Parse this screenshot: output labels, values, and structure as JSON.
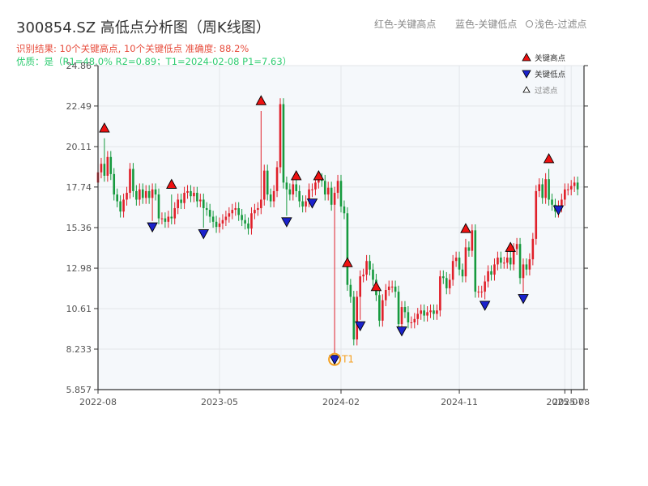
{
  "header": {
    "title": "300854.SZ 高低点分析图（周K线图）",
    "result_line": "识别结果: 10个关键高点, 10个关键低点  准确度: 88.2%",
    "quality_line": "优质：是（R1=48.0%  R2=0.89；T1=2024-02-08 P1=7.63）",
    "legend_red": "红色-关键高点",
    "legend_blue": "蓝色-关键低点",
    "legend_light": "浅色-过滤点"
  },
  "legend": {
    "high": "关键高点",
    "low": "关键低点",
    "filtered": "过滤点"
  },
  "annotation": {
    "t1": "T1"
  },
  "colors": {
    "up": "#e0202a",
    "down": "#169a3e",
    "high": "#ee1111",
    "low": "#1a22cc",
    "t1": "#f5a020"
  },
  "chart_data": {
    "type": "candlestick",
    "ylim": [
      5.857,
      24.86
    ],
    "y_ticks": [
      "5.857",
      "8.233",
      "10.61",
      "12.98",
      "15.36",
      "17.74",
      "20.11",
      "22.49",
      "24.86"
    ],
    "x_ticks": [
      "2022-08",
      "2023-05",
      "2024-02",
      "2024-11",
      "2025-07",
      "2025-08"
    ],
    "x_tick_positions": [
      0,
      38,
      76,
      113,
      146,
      148
    ],
    "x_range": [
      0,
      152
    ],
    "grid": true,
    "closes": [
      18.6,
      19.1,
      18.4,
      19.5,
      18.5,
      17.3,
      16.9,
      16.3,
      17.0,
      17.4,
      18.8,
      17.5,
      17.0,
      17.6,
      17.1,
      17.5,
      17.1,
      17.6,
      17.3,
      15.9,
      15.9,
      15.7,
      16.0,
      15.9,
      16.5,
      17.0,
      16.8,
      17.4,
      17.5,
      17.2,
      17.4,
      16.9,
      17.0,
      16.5,
      16.4,
      16.0,
      15.7,
      15.4,
      15.6,
      15.8,
      16.0,
      16.2,
      16.4,
      16.5,
      16.1,
      15.8,
      15.6,
      15.3,
      16.2,
      16.4,
      16.5,
      17.0,
      18.7,
      17.3,
      16.9,
      17.5,
      18.9,
      22.6,
      18.0,
      17.6,
      17.3,
      17.9,
      17.5,
      16.9,
      16.6,
      16.9,
      17.6,
      17.6,
      18.0,
      18.2,
      18.1,
      17.3,
      17.7,
      16.7,
      17.4,
      18.1,
      16.6,
      16.2,
      12.0,
      11.3,
      8.8,
      11.3,
      12.5,
      12.6,
      13.4,
      12.9,
      12.3,
      11.4,
      9.9,
      11.1,
      11.7,
      11.9,
      11.9,
      11.6,
      9.7,
      10.7,
      10.4,
      9.8,
      9.8,
      10.0,
      10.3,
      10.5,
      10.2,
      10.4,
      10.5,
      10.3,
      10.5,
      12.5,
      12.4,
      11.8,
      12.3,
      13.4,
      13.6,
      12.9,
      12.5,
      14.2,
      14.0,
      15.2,
      11.6,
      11.6,
      11.6,
      12.2,
      12.8,
      12.6,
      13.2,
      13.6,
      13.3,
      13.3,
      13.6,
      13.2,
      14.1,
      14.4,
      12.4,
      13.2,
      12.9,
      13.5,
      14.7,
      17.5,
      17.9,
      17.1,
      18.2,
      17.0,
      16.7,
      16.3,
      16.6,
      17.0,
      17.6,
      17.6,
      17.8,
      18.0,
      17.6
    ],
    "key_highs": [
      {
        "i": 2,
        "price": 21.2
      },
      {
        "i": 23,
        "price": 17.9
      },
      {
        "i": 51,
        "price": 22.8
      },
      {
        "i": 62,
        "price": 18.4
      },
      {
        "i": 69,
        "price": 18.4
      },
      {
        "i": 78,
        "price": 13.3
      },
      {
        "i": 87,
        "price": 11.9
      },
      {
        "i": 115,
        "price": 15.3
      },
      {
        "i": 129,
        "price": 14.2
      },
      {
        "i": 141,
        "price": 19.4
      }
    ],
    "key_lows": [
      {
        "i": 17,
        "price": 15.4
      },
      {
        "i": 33,
        "price": 15.0
      },
      {
        "i": 59,
        "price": 15.7
      },
      {
        "i": 67,
        "price": 16.8
      },
      {
        "i": 74,
        "price": 7.63
      },
      {
        "i": 82,
        "price": 9.6
      },
      {
        "i": 95,
        "price": 9.3
      },
      {
        "i": 121,
        "price": 10.8
      },
      {
        "i": 133,
        "price": 11.2
      },
      {
        "i": 144,
        "price": 16.4
      }
    ],
    "t1": {
      "i": 74,
      "date": "2024-02-08",
      "price": 7.63
    }
  }
}
